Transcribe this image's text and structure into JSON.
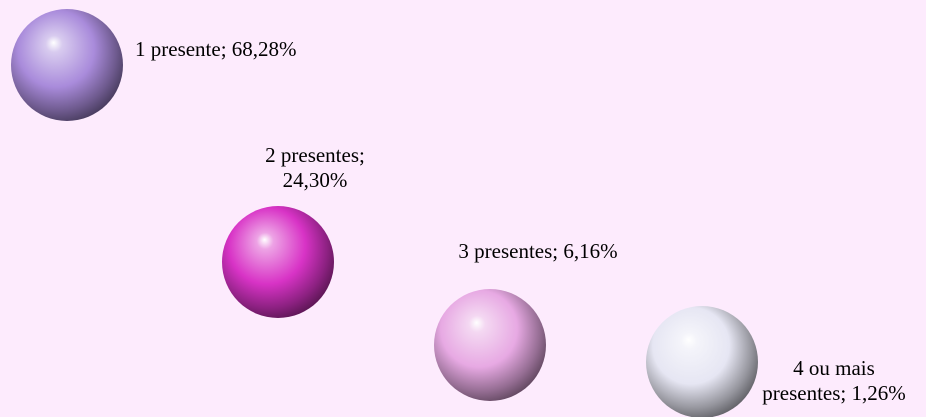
{
  "chart_data": {
    "type": "bubble",
    "background": "#FDEBFD",
    "points": [
      {
        "category": "1 presente",
        "value": 68.28,
        "label": "1 presente; 68,28%",
        "color": "#A98BDB"
      },
      {
        "category": "2 presentes",
        "value": 24.3,
        "label": "2 presentes; 24,30%",
        "color": "#D833C6"
      },
      {
        "category": "3 presentes",
        "value": 6.16,
        "label": "3 presentes; 6,16%",
        "color": "#E7A9E3"
      },
      {
        "category": "4 ou mais presentes",
        "value": 1.26,
        "label": "4 ou mais presentes; 1,26%",
        "color": "#E6E6F3"
      }
    ]
  }
}
